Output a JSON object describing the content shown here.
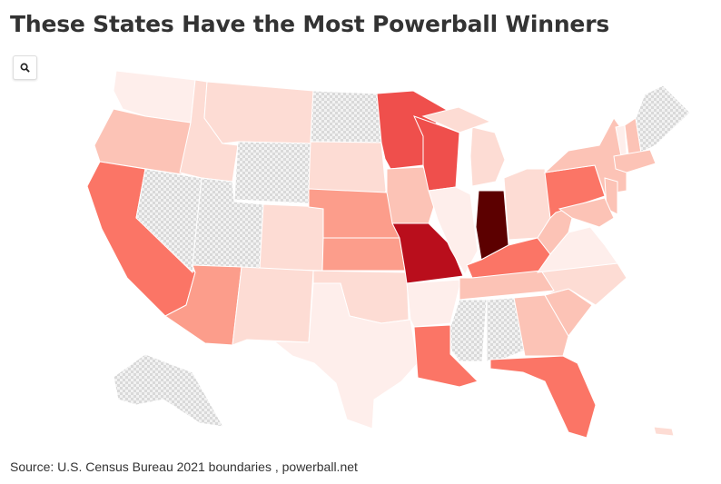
{
  "title": "These States Have the Most Powerball Winners",
  "search": {
    "icon": "search-icon"
  },
  "source": "Source: U.S. Census Bureau 2021 boundaries , powerball.net",
  "colors": {
    "no_data": "hatch",
    "max": "#5c0000",
    "high": "#b90e1c",
    "mid_high": "#ef4f4c",
    "mid": "#fb7566",
    "mid_low": "#fc9d8b",
    "low": "#fcc3b6",
    "lower": "#fddcd4",
    "lowest": "#feeeeb"
  },
  "state_fills": {
    "WA": "lowest",
    "OR": "low",
    "CA": "mid",
    "NV": "no_data",
    "ID": "lower",
    "MT": "lower",
    "WY": "no_data",
    "UT": "no_data",
    "CO": "lower",
    "AZ": "mid_low",
    "NM": "lower",
    "ND": "no_data",
    "SD": "lower",
    "NE": "mid_low",
    "KS": "mid_low",
    "OK": "lower",
    "TX": "lowest",
    "MN": "mid_high",
    "IA": "low",
    "MO": "high",
    "AR": "lowest",
    "LA": "mid",
    "WI": "mid_high",
    "IL": "lowest",
    "MI": "lower",
    "MIU": "lower",
    "IN": "max",
    "OH": "lower",
    "KY": "mid",
    "TN": "low",
    "MS": "no_data",
    "AL": "no_data",
    "GA": "low",
    "FL": "mid",
    "SC": "low",
    "NC": "lower",
    "VA": "lowest",
    "WV": "low",
    "PA": "mid",
    "NY": "low",
    "NJ": "low",
    "MD": "low",
    "VT": "lowest",
    "NH": "low",
    "ME": "no_data",
    "SNE": "low",
    "AK": "no_data",
    "HI": "lower"
  }
}
